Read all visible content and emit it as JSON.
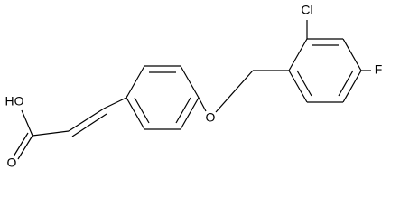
{
  "atoms": {
    "hydroxyl": "HO",
    "carbonyl_oxygen": "O",
    "ether_oxygen": "O",
    "chlorine": "Cl",
    "fluorine": "F"
  }
}
